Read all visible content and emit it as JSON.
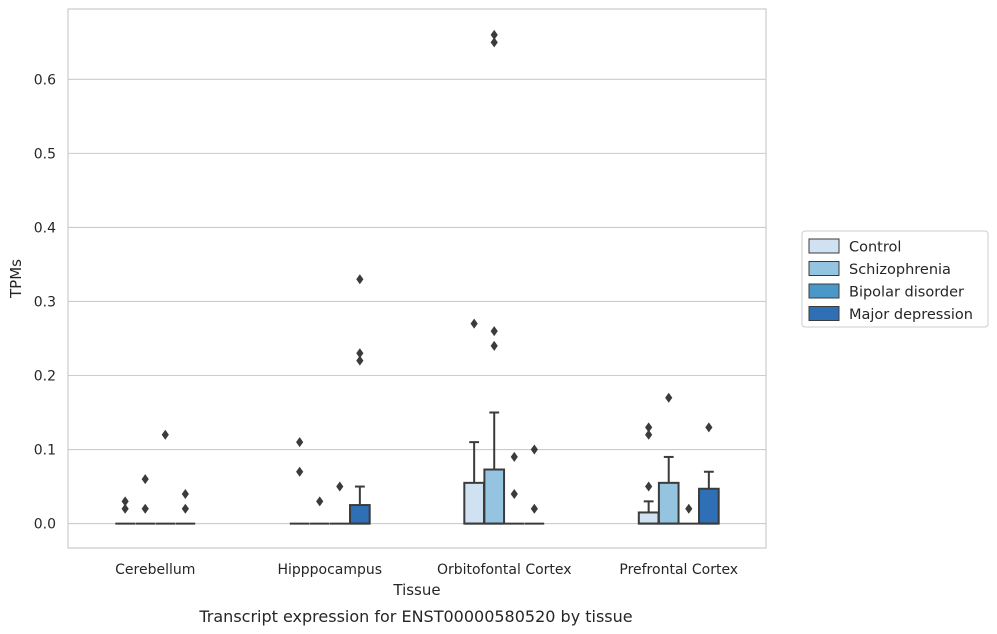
{
  "chart_data": {
    "type": "box",
    "title": "",
    "caption": "Transcript expression for ENST00000580520 by tissue",
    "xlabel": "Tissue",
    "ylabel": "TPMs",
    "ylim": [
      -0.033,
      0.695
    ],
    "yticks": [
      "0.0",
      "0.1",
      "0.2",
      "0.3",
      "0.4",
      "0.5",
      "0.6"
    ],
    "grid": "horizontal",
    "legend_position": "right",
    "categories": [
      "Cerebellum",
      "Hipppocampus",
      "Orbitofontal Cortex",
      "Prefrontal Cortex"
    ],
    "series": [
      {
        "name": "Control",
        "color": "#d0e1f2",
        "boxes": [
          {
            "q1": 0,
            "median": 0,
            "q3": 0,
            "whisker_low": 0,
            "whisker_high": 0,
            "outliers": [
              0.03,
              0.02
            ]
          },
          {
            "q1": 0,
            "median": 0,
            "q3": 0,
            "whisker_low": 0,
            "whisker_high": 0,
            "outliers": [
              0.11,
              0.07
            ]
          },
          {
            "q1": 0,
            "median": 0,
            "q3": 0.055,
            "whisker_low": 0,
            "whisker_high": 0.11,
            "outliers": [
              0.27
            ]
          },
          {
            "q1": 0,
            "median": 0,
            "q3": 0.015,
            "whisker_low": 0,
            "whisker_high": 0.03,
            "outliers": [
              0.13,
              0.12,
              0.05
            ]
          }
        ]
      },
      {
        "name": "Schizophrenia",
        "color": "#94c4df",
        "boxes": [
          {
            "q1": 0,
            "median": 0,
            "q3": 0,
            "whisker_low": 0,
            "whisker_high": 0,
            "outliers": [
              0.06,
              0.02
            ]
          },
          {
            "q1": 0,
            "median": 0,
            "q3": 0,
            "whisker_low": 0,
            "whisker_high": 0,
            "outliers": [
              0.03
            ]
          },
          {
            "q1": 0,
            "median": 0,
            "q3": 0.073,
            "whisker_low": 0,
            "whisker_high": 0.15,
            "outliers": [
              0.66,
              0.65,
              0.26,
              0.24
            ]
          },
          {
            "q1": 0,
            "median": 0,
            "q3": 0.055,
            "whisker_low": 0,
            "whisker_high": 0.09,
            "outliers": [
              0.17
            ]
          }
        ]
      },
      {
        "name": "Bipolar disorder",
        "color": "#4a98c9",
        "boxes": [
          {
            "q1": 0,
            "median": 0,
            "q3": 0,
            "whisker_low": 0,
            "whisker_high": 0,
            "outliers": [
              0.12
            ]
          },
          {
            "q1": 0,
            "median": 0,
            "q3": 0,
            "whisker_low": 0,
            "whisker_high": 0,
            "outliers": [
              0.05
            ]
          },
          {
            "q1": 0,
            "median": 0,
            "q3": 0,
            "whisker_low": 0,
            "whisker_high": 0,
            "outliers": [
              0.09,
              0.04
            ]
          },
          {
            "q1": 0,
            "median": 0,
            "q3": 0,
            "whisker_low": 0,
            "whisker_high": 0,
            "outliers": [
              0.02
            ]
          }
        ]
      },
      {
        "name": "Major depression",
        "color": "#2e6fb5",
        "boxes": [
          {
            "q1": 0,
            "median": 0,
            "q3": 0,
            "whisker_low": 0,
            "whisker_high": 0,
            "outliers": [
              0.04,
              0.02
            ]
          },
          {
            "q1": 0,
            "median": 0,
            "q3": 0.025,
            "whisker_low": 0,
            "whisker_high": 0.05,
            "outliers": [
              0.33,
              0.23,
              0.22
            ]
          },
          {
            "q1": 0,
            "median": 0,
            "q3": 0,
            "whisker_low": 0,
            "whisker_high": 0,
            "outliers": [
              0.1,
              0.02
            ]
          },
          {
            "q1": 0,
            "median": 0,
            "q3": 0.047,
            "whisker_low": 0,
            "whisker_high": 0.07,
            "outliers": [
              0.13
            ]
          }
        ]
      }
    ]
  }
}
